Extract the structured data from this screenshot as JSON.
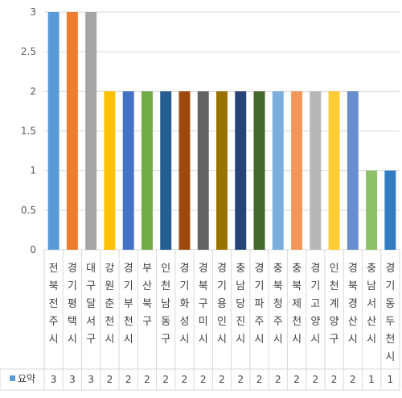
{
  "chart_data": {
    "type": "bar",
    "categories": [
      "전북전주시",
      "경기평택시",
      "대구달서구",
      "강원춘천시",
      "경기부천시",
      "부산북구",
      "인천남동구",
      "경기화성시",
      "경북구미시",
      "경기용인시",
      "충남당진시",
      "경기파주시",
      "충북청주시",
      "충북제천시",
      "경기고양시",
      "인천계양구",
      "경북경산시",
      "충남서산시",
      "경기동두천시"
    ],
    "series": [
      {
        "name": "요약",
        "values": [
          3,
          3,
          3,
          2,
          2,
          2,
          2,
          2,
          2,
          2,
          2,
          2,
          2,
          2,
          2,
          2,
          2,
          1,
          1
        ]
      }
    ],
    "value_labels": [
      "3",
      "3",
      "3",
      "2",
      "2",
      "2",
      "2",
      "2",
      "2",
      "2",
      "2",
      "2",
      "2",
      "2",
      "2",
      "2",
      "2",
      "1",
      "1"
    ],
    "ylim": [
      0,
      3
    ],
    "y_ticks": [
      "0",
      "0.5",
      "1",
      "1.5",
      "2",
      "2.5",
      "3"
    ],
    "grid": true,
    "legend_position": "data-table-left",
    "legend_marker_color": "#5B9BD5",
    "colors": [
      "#5B9BD5",
      "#ED7D31",
      "#A5A5A5",
      "#FFC000",
      "#4472C4",
      "#70AD47",
      "#255E91",
      "#9E480E",
      "#636363",
      "#997300",
      "#264478",
      "#43682B",
      "#7CAFDD",
      "#F1975A",
      "#B7B7B7",
      "#FFCD33",
      "#698ED0",
      "#8CC168",
      "#327DC2",
      "#D26012"
    ]
  }
}
